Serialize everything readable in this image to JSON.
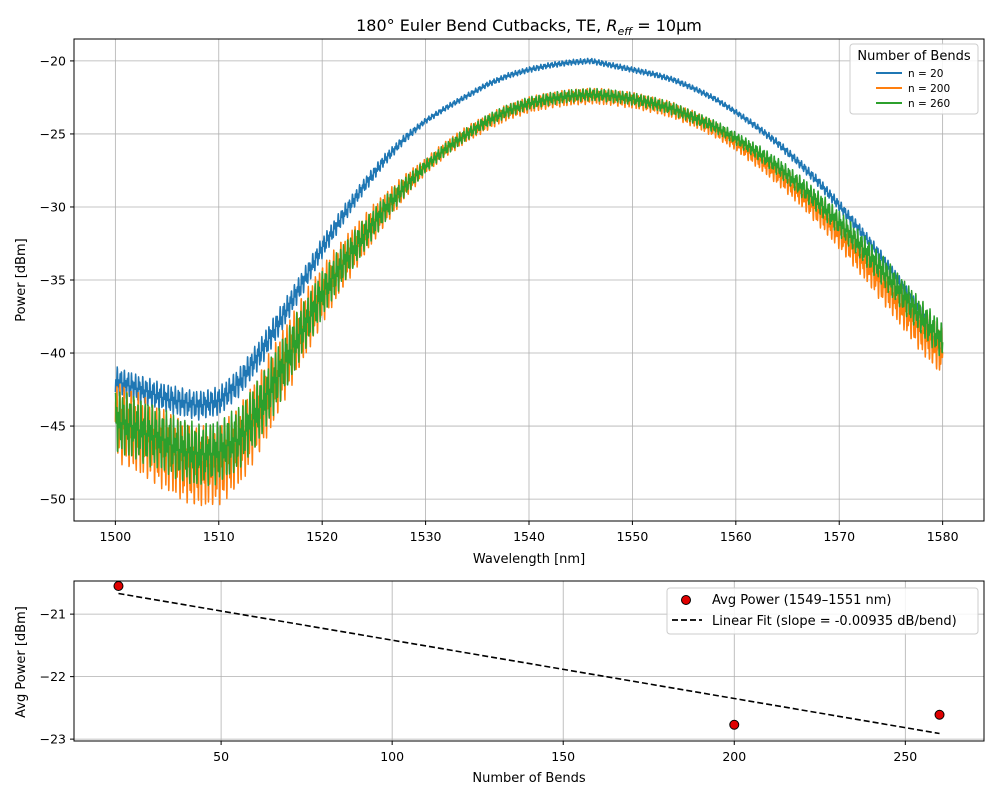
{
  "chart_data": [
    {
      "type": "line",
      "title_prefix": "180° Euler Bend Cutbacks, TE, ",
      "title_math": "R",
      "title_math_sub": "eff",
      "title_math_rest": " = 10μm",
      "xlabel": "Wavelength [nm]",
      "ylabel": "Power [dBm]",
      "xlim": [
        1496,
        1584
      ],
      "ylim": [
        -51.5,
        -18.5
      ],
      "xticks": [
        1500,
        1510,
        1520,
        1530,
        1540,
        1550,
        1560,
        1570,
        1580
      ],
      "yticks": [
        -50,
        -45,
        -40,
        -35,
        -30,
        -25,
        -20
      ],
      "grid": true,
      "legend_title": "Number of Bends",
      "legend_position": "top-right",
      "series": [
        {
          "name": "n = 20",
          "color": "#1f77b4",
          "ripple": 1.0,
          "points": [
            [
              1500,
              -41.9
            ],
            [
              1502,
              -42.4
            ],
            [
              1504,
              -42.9
            ],
            [
              1506,
              -43.3
            ],
            [
              1508,
              -43.6
            ],
            [
              1510,
              -43.3
            ],
            [
              1512,
              -42.0
            ],
            [
              1514,
              -40.0
            ],
            [
              1516,
              -37.7
            ],
            [
              1518,
              -35.3
            ],
            [
              1520,
              -32.8
            ],
            [
              1522,
              -30.6
            ],
            [
              1524,
              -28.6
            ],
            [
              1526,
              -26.8
            ],
            [
              1528,
              -25.3
            ],
            [
              1530,
              -24.1
            ],
            [
              1532,
              -23.2
            ],
            [
              1534,
              -22.4
            ],
            [
              1536,
              -21.6
            ],
            [
              1538,
              -21.0
            ],
            [
              1540,
              -20.6
            ],
            [
              1542,
              -20.3
            ],
            [
              1544,
              -20.1
            ],
            [
              1546,
              -20.0
            ],
            [
              1548,
              -20.3
            ],
            [
              1550,
              -20.6
            ],
            [
              1552,
              -20.9
            ],
            [
              1554,
              -21.3
            ],
            [
              1556,
              -21.9
            ],
            [
              1558,
              -22.6
            ],
            [
              1560,
              -23.5
            ],
            [
              1562,
              -24.5
            ],
            [
              1564,
              -25.6
            ],
            [
              1566,
              -26.9
            ],
            [
              1568,
              -28.3
            ],
            [
              1570,
              -29.9
            ],
            [
              1572,
              -31.6
            ],
            [
              1574,
              -33.4
            ],
            [
              1576,
              -35.4
            ],
            [
              1578,
              -37.5
            ],
            [
              1580,
              -40.0
            ]
          ]
        },
        {
          "name": "n = 200",
          "color": "#ff7f0e",
          "ripple": 2.8,
          "points": [
            [
              1500,
              -44.6
            ],
            [
              1502,
              -45.4
            ],
            [
              1504,
              -46.3
            ],
            [
              1506,
              -47.2
            ],
            [
              1508,
              -47.8
            ],
            [
              1510,
              -47.7
            ],
            [
              1512,
              -46.4
            ],
            [
              1514,
              -44.0
            ],
            [
              1516,
              -41.2
            ],
            [
              1518,
              -38.5
            ],
            [
              1520,
              -36.0
            ],
            [
              1522,
              -33.9
            ],
            [
              1524,
              -32.0
            ],
            [
              1526,
              -30.2
            ],
            [
              1528,
              -28.6
            ],
            [
              1530,
              -27.2
            ],
            [
              1532,
              -26.0
            ],
            [
              1534,
              -25.0
            ],
            [
              1536,
              -24.2
            ],
            [
              1538,
              -23.5
            ],
            [
              1540,
              -23.0
            ],
            [
              1542,
              -22.7
            ],
            [
              1544,
              -22.5
            ],
            [
              1546,
              -22.4
            ],
            [
              1548,
              -22.5
            ],
            [
              1550,
              -22.7
            ],
            [
              1552,
              -23.0
            ],
            [
              1554,
              -23.4
            ],
            [
              1556,
              -24.0
            ],
            [
              1558,
              -24.7
            ],
            [
              1560,
              -25.6
            ],
            [
              1562,
              -26.6
            ],
            [
              1564,
              -27.7
            ],
            [
              1566,
              -28.9
            ],
            [
              1568,
              -30.3
            ],
            [
              1570,
              -31.8
            ],
            [
              1572,
              -33.4
            ],
            [
              1574,
              -35.1
            ],
            [
              1576,
              -36.8
            ],
            [
              1578,
              -38.5
            ],
            [
              1580,
              -40.0
            ]
          ]
        },
        {
          "name": "n = 260",
          "color": "#2ca02c",
          "ripple": 2.2,
          "points": [
            [
              1500,
              -44.6
            ],
            [
              1502,
              -45.2
            ],
            [
              1504,
              -45.8
            ],
            [
              1506,
              -46.5
            ],
            [
              1508,
              -47.0
            ],
            [
              1510,
              -46.8
            ],
            [
              1512,
              -45.8
            ],
            [
              1514,
              -43.8
            ],
            [
              1516,
              -41.2
            ],
            [
              1518,
              -38.5
            ],
            [
              1520,
              -36.0
            ],
            [
              1522,
              -33.9
            ],
            [
              1524,
              -32.0
            ],
            [
              1526,
              -30.2
            ],
            [
              1528,
              -28.6
            ],
            [
              1530,
              -27.2
            ],
            [
              1532,
              -26.0
            ],
            [
              1534,
              -25.0
            ],
            [
              1536,
              -24.1
            ],
            [
              1538,
              -23.4
            ],
            [
              1540,
              -22.9
            ],
            [
              1542,
              -22.6
            ],
            [
              1544,
              -22.4
            ],
            [
              1546,
              -22.3
            ],
            [
              1548,
              -22.4
            ],
            [
              1550,
              -22.6
            ],
            [
              1552,
              -22.9
            ],
            [
              1554,
              -23.3
            ],
            [
              1556,
              -23.9
            ],
            [
              1558,
              -24.5
            ],
            [
              1560,
              -25.3
            ],
            [
              1562,
              -26.2
            ],
            [
              1564,
              -27.2
            ],
            [
              1566,
              -28.4
            ],
            [
              1568,
              -29.7
            ],
            [
              1570,
              -31.1
            ],
            [
              1572,
              -32.6
            ],
            [
              1574,
              -34.2
            ],
            [
              1576,
              -35.9
            ],
            [
              1578,
              -37.6
            ],
            [
              1580,
              -39.2
            ]
          ]
        }
      ]
    },
    {
      "type": "scatter",
      "xlabel": "Number of Bends",
      "ylabel": "Avg Power [dBm]",
      "xlim": [
        7,
        273
      ],
      "ylim": [
        -23.03,
        -20.47
      ],
      "xticks": [
        50,
        100,
        150,
        200,
        250
      ],
      "yticks": [
        -23,
        -22,
        -21
      ],
      "grid": true,
      "legend_position": "top-right",
      "points": {
        "name": "Avg Power (1549–1551 nm)",
        "color": "#e00000",
        "edge": "#000000",
        "x": [
          20,
          200,
          260
        ],
        "y": [
          -20.55,
          -22.77,
          -22.61
        ]
      },
      "fit": {
        "name": "Linear Fit (slope = -0.00935 dB/bend)",
        "color": "#000000",
        "x": [
          20,
          260
        ],
        "y": [
          -20.67,
          -22.91
        ]
      }
    }
  ]
}
